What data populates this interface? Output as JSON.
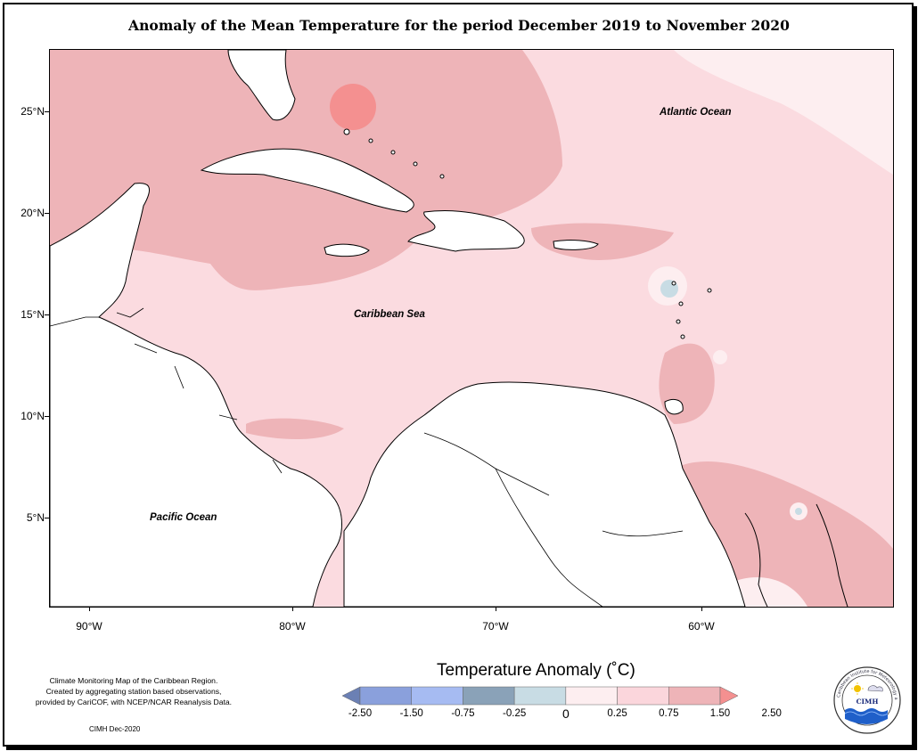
{
  "title": "Anomaly of the Mean Temperature for the period December 2019 to November 2020",
  "axes": {
    "latitude_ticks": [
      "25°N",
      "20°N",
      "15°N",
      "10°N",
      "5°N"
    ],
    "longitude_ticks": [
      "90°W",
      "80°W",
      "70°W",
      "60°W"
    ]
  },
  "ocean_labels": {
    "atlantic": "Atlantic Ocean",
    "caribbean": "Caribbean Sea",
    "pacific": "Pacific Ocean"
  },
  "credit": {
    "line1": "Climate Monitoring Map of the Caribbean Region.",
    "line2": "Created by aggregating station based observations,",
    "line3": "provided by CariCOF, with NCEP/NCAR Reanalysis Data.",
    "date": "CIMH Dec-2020"
  },
  "legend": {
    "title": "Temperature Anomaly (˚C)",
    "tick_labels": [
      "-2.50",
      "-1.50",
      "-0.75",
      "-0.25",
      "0",
      "0.25",
      "0.75",
      "1.50",
      "2.50"
    ],
    "colors": [
      "#6b80b4",
      "#8aa0dc",
      "#a6bbf2",
      "#8aa2b8",
      "#c8dce4",
      "#fdeef0",
      "#fbd6dc",
      "#eeb4b8",
      "#f49090"
    ]
  },
  "logo": {
    "name": "CIMH",
    "ring_text": "Caribbean Institute for Meteorology and Hydrology"
  }
}
